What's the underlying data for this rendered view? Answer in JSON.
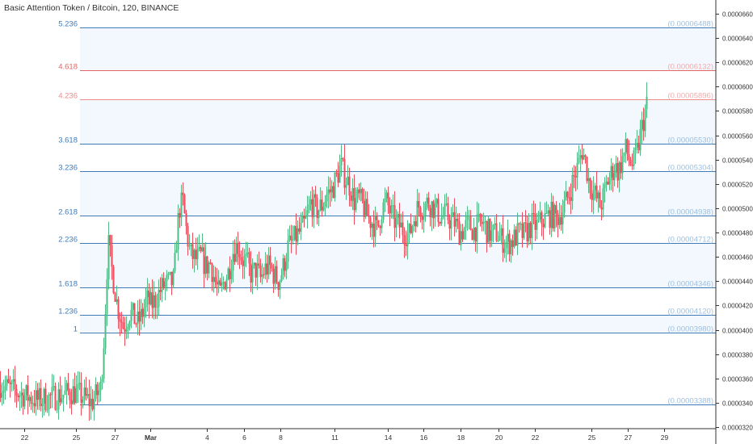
{
  "header": {
    "title": "Basic Attention Token / Bitcoin, 120, BINANCE"
  },
  "chart_data": {
    "type": "candlestick",
    "symbol": "Basic Attention Token / Bitcoin",
    "interval": "120",
    "exchange": "BINANCE",
    "y_axis": {
      "ticks": [
        "0.00006600",
        "0.00006400",
        "0.00006200",
        "0.00006000",
        "0.00005800",
        "0.00005600",
        "0.00005400",
        "0.00005200",
        "0.00005000",
        "0.00004800",
        "0.00004600",
        "0.00004400",
        "0.00004200",
        "0.00004000",
        "0.00003800",
        "0.00003600",
        "0.00003400",
        "0.00003200"
      ]
    },
    "x_axis": {
      "ticks": [
        "22",
        "25",
        "27",
        "Mar",
        "4",
        "6",
        "8",
        "11",
        "14",
        "16",
        "18",
        "20",
        "22",
        "25",
        "27",
        "29"
      ]
    },
    "fib_levels": [
      {
        "ratio": "5.236",
        "price_label": "(0.00006488)",
        "price": 6.488e-05,
        "color": "#3d7bbd"
      },
      {
        "ratio": "4.618",
        "price_label": "(0.00006132)",
        "price": 6.132e-05,
        "color": "#e06666"
      },
      {
        "ratio": "4.236",
        "price_label": "(0.00005896)",
        "price": 5.896e-05,
        "color": "#ef8a8a"
      },
      {
        "ratio": "3.618",
        "price_label": "(0.00005530)",
        "price": 5.53e-05,
        "color": "#3d7bbd"
      },
      {
        "ratio": "3.236",
        "price_label": "(0.00005304)",
        "price": 5.304e-05,
        "color": "#3d7bbd"
      },
      {
        "ratio": "2.618",
        "price_label": "(0.00004938)",
        "price": 4.938e-05,
        "color": "#3d7bbd"
      },
      {
        "ratio": "2.236",
        "price_label": "(0.00004712)",
        "price": 4.712e-05,
        "color": "#3d7bbd"
      },
      {
        "ratio": "1.618",
        "price_label": "(0.00004346)",
        "price": 4.346e-05,
        "color": "#3d7bbd"
      },
      {
        "ratio": "1.236",
        "price_label": "(0.00004120)",
        "price": 4.12e-05,
        "color": "#3d7bbd"
      },
      {
        "ratio": "1",
        "price_label": "(0.00003980)",
        "price": 3.98e-05,
        "color": "#3d7bbd"
      },
      {
        "ratio": "",
        "price_label": "(0.00003388)",
        "price": 3.388e-05,
        "color": "#3d7bbd"
      }
    ],
    "ylim": [
      3.22e-05,
      6.69e-05
    ],
    "close_path": [
      [
        0,
        3.55e-05
      ],
      [
        2,
        3.48e-05
      ],
      [
        4,
        3.42e-05
      ],
      [
        6,
        3.45e-05
      ],
      [
        8,
        3.49e-05
      ],
      [
        9,
        3.45e-05
      ],
      [
        10,
        3.4e-05
      ],
      [
        11,
        3.52e-05
      ],
      [
        11.4,
        4e-05
      ],
      [
        11.8,
        4.72e-05
      ],
      [
        12.3,
        4.45e-05
      ],
      [
        12.8,
        4.2e-05
      ],
      [
        13.5,
        4.02e-05
      ],
      [
        14.2,
        4.15e-05
      ],
      [
        15,
        4.05e-05
      ],
      [
        15.5,
        4.12e-05
      ],
      [
        16,
        4.25e-05
      ],
      [
        16.5,
        4.2e-05
      ],
      [
        17,
        4.25e-05
      ],
      [
        17.5,
        4.32e-05
      ],
      [
        18,
        4.38e-05
      ],
      [
        18.5,
        4.38e-05
      ],
      [
        19,
        4.4e-05
      ],
      [
        19.3,
        4.75e-05
      ],
      [
        19.6,
        5e-05
      ],
      [
        20,
        5.05e-05
      ],
      [
        20.4,
        4.8e-05
      ],
      [
        20.8,
        4.62e-05
      ],
      [
        21.4,
        4.58e-05
      ],
      [
        22,
        4.6e-05
      ],
      [
        22.5,
        4.52e-05
      ],
      [
        23,
        4.55e-05
      ],
      [
        23.5,
        4.4e-05
      ],
      [
        24,
        4.28e-05
      ],
      [
        24.5,
        4.4e-05
      ],
      [
        25,
        4.48e-05
      ],
      [
        25.5,
        4.65e-05
      ],
      [
        26,
        4.7e-05
      ],
      [
        26.5,
        4.58e-05
      ],
      [
        27,
        4.55e-05
      ],
      [
        27.5,
        4.45e-05
      ],
      [
        28,
        4.5e-05
      ],
      [
        28.5,
        4.42e-05
      ],
      [
        29,
        4.5e-05
      ],
      [
        29.5,
        4.52e-05
      ],
      [
        30,
        4.45e-05
      ],
      [
        30.5,
        4.4e-05
      ],
      [
        31,
        4.52e-05
      ],
      [
        31.5,
        4.68e-05
      ],
      [
        32,
        4.72e-05
      ],
      [
        32.5,
        4.78e-05
      ],
      [
        33,
        4.82e-05
      ],
      [
        33.5,
        4.9e-05
      ],
      [
        34,
        5.05e-05
      ],
      [
        34.6,
        4.98e-05
      ],
      [
        35.2,
        5.02e-05
      ],
      [
        35.8,
        5.12e-05
      ],
      [
        36.3,
        5.15e-05
      ],
      [
        36.8,
        5.25e-05
      ],
      [
        37.3,
        5.35e-05
      ],
      [
        37.8,
        5.25e-05
      ],
      [
        38.3,
        5.18e-05
      ],
      [
        38.8,
        5.05e-05
      ],
      [
        39.3,
        5.08e-05
      ],
      [
        39.8,
        5e-05
      ],
      [
        40.3,
        4.92e-05
      ],
      [
        40.8,
        4.88e-05
      ],
      [
        41.3,
        4.82e-05
      ],
      [
        41.8,
        5e-05
      ],
      [
        42.3,
        5.05e-05
      ],
      [
        42.8,
        4.95e-05
      ],
      [
        43.3,
        4.88e-05
      ],
      [
        43.8,
        4.85e-05
      ],
      [
        44.3,
        4.8e-05
      ],
      [
        44.8,
        4.78e-05
      ],
      [
        45.3,
        4.92e-05
      ],
      [
        45.8,
        5.02e-05
      ],
      [
        46.3,
        5e-05
      ],
      [
        46.8,
        5.05e-05
      ],
      [
        47.3,
        5.02e-05
      ],
      [
        47.8,
        4.98e-05
      ],
      [
        48.3,
        4.92e-05
      ],
      [
        48.8,
        4.95e-05
      ],
      [
        49.3,
        4.9e-05
      ],
      [
        49.8,
        4.88e-05
      ],
      [
        50.3,
        4.8e-05
      ],
      [
        50.8,
        4.83e-05
      ],
      [
        51.3,
        4.87e-05
      ],
      [
        51.8,
        4.82e-05
      ],
      [
        52.3,
        4.85e-05
      ],
      [
        52.8,
        4.88e-05
      ],
      [
        53.3,
        4.82e-05
      ],
      [
        53.8,
        4.78e-05
      ],
      [
        54.3,
        4.8e-05
      ],
      [
        54.8,
        4.75e-05
      ],
      [
        55.3,
        4.72e-05
      ],
      [
        55.8,
        4.72e-05
      ],
      [
        56.3,
        4.75e-05
      ],
      [
        56.8,
        4.8e-05
      ],
      [
        57.3,
        4.78e-05
      ],
      [
        57.8,
        4.82e-05
      ],
      [
        58.3,
        4.87e-05
      ],
      [
        58.8,
        4.85e-05
      ],
      [
        59.3,
        4.9e-05
      ],
      [
        59.8,
        4.92e-05
      ],
      [
        60.3,
        4.95e-05
      ],
      [
        60.8,
        4.92e-05
      ],
      [
        61.3,
        4.95e-05
      ],
      [
        61.8,
        5.02e-05
      ],
      [
        62.3,
        5.12e-05
      ],
      [
        62.8,
        5.25e-05
      ],
      [
        63.3,
        5.35e-05
      ],
      [
        63.7,
        5.48e-05
      ],
      [
        64.1,
        5.38e-05
      ],
      [
        64.5,
        5.2e-05
      ],
      [
        64.9,
        5.15e-05
      ],
      [
        65.3,
        5.08e-05
      ],
      [
        65.7,
        5.02e-05
      ],
      [
        66.1,
        5.1e-05
      ],
      [
        66.5,
        5.22e-05
      ],
      [
        66.9,
        5.28e-05
      ],
      [
        67.3,
        5.35e-05
      ],
      [
        67.7,
        5.3e-05
      ],
      [
        68.1,
        5.4e-05
      ],
      [
        68.5,
        5.48e-05
      ],
      [
        68.9,
        5.4e-05
      ],
      [
        69.3,
        5.35e-05
      ],
      [
        69.7,
        5.45e-05
      ],
      [
        70.1,
        5.6e-05
      ],
      [
        70.5,
        5.75e-05
      ],
      [
        70.8,
        5.85e-05
      ]
    ]
  }
}
